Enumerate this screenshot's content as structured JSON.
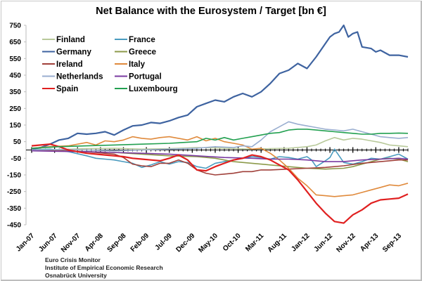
{
  "chart_data": {
    "type": "line",
    "title": "Net Balance with the Eurosystem / Target [bn €]",
    "xlabel": "",
    "ylabel": "",
    "ylim": [
      -450,
      750
    ],
    "yticks": [
      750,
      650,
      550,
      450,
      350,
      250,
      150,
      50,
      -50,
      -150,
      -250,
      -350,
      -450
    ],
    "x_range": [
      "Jan-07",
      "Nov-13"
    ],
    "xtick_labels": [
      "Jan-07",
      "Jun-07",
      "Nov-07",
      "Apr-08",
      "Sep-08",
      "Feb-09",
      "Jul-09",
      "Dec-09",
      "May-10",
      "Oct-10",
      "Mar-11",
      "Aug-11",
      "Jan-12",
      "Jun-12",
      "Nov-12",
      "Apr-13",
      "Sep-13"
    ],
    "x_note": "x values are month indices from Jan-07 (0) to Nov-13 (82)",
    "grid": false,
    "legend_position": "top-left",
    "series": [
      {
        "name": "Finland",
        "color": "#b8c99a",
        "x": [
          0,
          6,
          12,
          18,
          24,
          30,
          36,
          42,
          48,
          52,
          56,
          60,
          62,
          64,
          66,
          68,
          70,
          72,
          74,
          76,
          78,
          80,
          82
        ],
        "values": [
          5,
          3,
          8,
          10,
          5,
          8,
          15,
          10,
          5,
          8,
          10,
          20,
          30,
          55,
          75,
          60,
          70,
          65,
          55,
          45,
          30,
          25,
          20
        ]
      },
      {
        "name": "France",
        "color": "#4a9bbf",
        "x": [
          0,
          4,
          8,
          12,
          14,
          16,
          18,
          20,
          22,
          24,
          26,
          28,
          30,
          32,
          34,
          36,
          38,
          40,
          42,
          44,
          46,
          48,
          50,
          52,
          54,
          56,
          58,
          60,
          61,
          62,
          64,
          65,
          66,
          68,
          70,
          72,
          74,
          76,
          78,
          80,
          82
        ],
        "values": [
          0,
          5,
          -10,
          -35,
          -50,
          -55,
          -60,
          -70,
          -80,
          -105,
          -90,
          -70,
          -85,
          -70,
          -75,
          -100,
          -110,
          -80,
          -70,
          -60,
          -50,
          -40,
          -45,
          -55,
          -40,
          -45,
          -55,
          -40,
          -60,
          -100,
          -65,
          -45,
          5,
          -75,
          -85,
          -70,
          -50,
          -55,
          -40,
          -25,
          -55
        ]
      },
      {
        "name": "Germany",
        "color": "#3e63a0",
        "x": [
          0,
          2,
          4,
          6,
          8,
          10,
          12,
          14,
          16,
          18,
          20,
          22,
          24,
          26,
          28,
          30,
          32,
          34,
          36,
          38,
          40,
          42,
          44,
          46,
          48,
          50,
          52,
          54,
          56,
          58,
          60,
          62,
          64,
          65,
          66,
          67,
          68,
          69,
          70,
          71,
          72,
          74,
          75,
          76,
          78,
          80,
          82
        ],
        "values": [
          5,
          15,
          35,
          60,
          70,
          100,
          95,
          100,
          110,
          90,
          120,
          145,
          150,
          165,
          160,
          175,
          195,
          210,
          260,
          280,
          300,
          290,
          320,
          340,
          320,
          350,
          400,
          460,
          480,
          520,
          490,
          560,
          640,
          680,
          700,
          710,
          750,
          680,
          700,
          710,
          620,
          610,
          590,
          600,
          570,
          570,
          560
        ]
      },
      {
        "name": "Greece",
        "color": "#8c9a4a",
        "x": [
          0,
          6,
          12,
          18,
          24,
          30,
          36,
          40,
          44,
          48,
          52,
          56,
          60,
          64,
          68,
          70,
          72,
          74,
          76,
          78,
          80,
          82
        ],
        "values": [
          0,
          -5,
          -10,
          -15,
          -25,
          -35,
          -40,
          -50,
          -70,
          -80,
          -90,
          -100,
          -110,
          -115,
          -110,
          -100,
          -85,
          -70,
          -55,
          -50,
          -55,
          -70
        ]
      },
      {
        "name": "Ireland",
        "color": "#a0403a",
        "x": [
          0,
          6,
          12,
          18,
          20,
          22,
          24,
          26,
          28,
          30,
          32,
          34,
          36,
          38,
          40,
          42,
          44,
          46,
          48,
          50,
          52,
          56,
          60,
          64,
          68,
          72,
          76,
          80,
          82
        ],
        "values": [
          0,
          -5,
          -10,
          -25,
          -45,
          -85,
          -95,
          -100,
          -80,
          -80,
          -60,
          -80,
          -120,
          -140,
          -150,
          -145,
          -140,
          -130,
          -130,
          -120,
          -120,
          -115,
          -110,
          -105,
          -95,
          -80,
          -70,
          -60,
          -60
        ]
      },
      {
        "name": "Italy",
        "color": "#e08a3c",
        "x": [
          0,
          4,
          8,
          12,
          14,
          16,
          18,
          20,
          22,
          24,
          26,
          28,
          30,
          32,
          34,
          36,
          38,
          40,
          42,
          44,
          46,
          48,
          50,
          52,
          54,
          56,
          58,
          60,
          62,
          64,
          66,
          68,
          70,
          72,
          74,
          76,
          78,
          80,
          82
        ],
        "values": [
          10,
          20,
          25,
          45,
          30,
          55,
          50,
          60,
          80,
          70,
          65,
          75,
          80,
          70,
          60,
          80,
          55,
          70,
          50,
          40,
          30,
          5,
          10,
          -20,
          -60,
          -110,
          -170,
          -215,
          -270,
          -275,
          -280,
          -275,
          -270,
          -255,
          -240,
          -225,
          -210,
          -215,
          -200
        ]
      },
      {
        "name": "Netherlands",
        "color": "#9aaed0",
        "x": [
          0,
          6,
          12,
          18,
          24,
          30,
          36,
          40,
          44,
          46,
          48,
          50,
          52,
          54,
          56,
          58,
          60,
          62,
          64,
          66,
          68,
          70,
          72,
          74,
          76,
          78,
          80,
          82
        ],
        "values": [
          0,
          2,
          0,
          -5,
          0,
          5,
          10,
          20,
          15,
          25,
          20,
          60,
          110,
          140,
          170,
          155,
          145,
          135,
          125,
          120,
          115,
          125,
          110,
          95,
          80,
          75,
          70,
          75
        ]
      },
      {
        "name": "Portugal",
        "color": "#7a3aa0",
        "x": [
          0,
          6,
          12,
          18,
          24,
          30,
          36,
          42,
          48,
          52,
          56,
          60,
          64,
          68,
          72,
          76,
          80,
          82
        ],
        "values": [
          -5,
          -8,
          -10,
          -15,
          -20,
          -25,
          -35,
          -45,
          -50,
          -55,
          -55,
          -60,
          -70,
          -70,
          -60,
          -55,
          -50,
          -55
        ]
      },
      {
        "name": "Spain",
        "color": "#e02020",
        "x": [
          0,
          2,
          4,
          6,
          8,
          10,
          12,
          14,
          16,
          18,
          20,
          22,
          24,
          26,
          28,
          30,
          32,
          34,
          36,
          38,
          40,
          42,
          44,
          46,
          48,
          50,
          52,
          54,
          56,
          58,
          60,
          62,
          64,
          66,
          68,
          70,
          72,
          74,
          76,
          78,
          80,
          82
        ],
        "values": [
          25,
          30,
          35,
          20,
          0,
          -10,
          -20,
          -25,
          -30,
          -35,
          -40,
          -50,
          -55,
          -60,
          -65,
          -50,
          -30,
          -60,
          -120,
          -125,
          -100,
          -80,
          -60,
          -50,
          -30,
          -40,
          -60,
          -90,
          -120,
          -180,
          -250,
          -320,
          -380,
          -430,
          -440,
          -390,
          -360,
          -320,
          -300,
          -295,
          -290,
          -265
        ]
      },
      {
        "name": "Luxembourg",
        "color": "#22a050",
        "x": [
          0,
          6,
          12,
          18,
          24,
          30,
          36,
          38,
          40,
          42,
          44,
          46,
          48,
          50,
          52,
          54,
          56,
          58,
          60,
          62,
          64,
          66,
          68,
          70,
          72,
          74,
          76,
          78,
          80,
          82
        ],
        "values": [
          10,
          20,
          25,
          30,
          35,
          40,
          50,
          70,
          60,
          75,
          60,
          70,
          80,
          90,
          100,
          105,
          120,
          125,
          125,
          120,
          115,
          110,
          105,
          100,
          95,
          95,
          100,
          100,
          102,
          100
        ]
      }
    ]
  },
  "source_note": [
    "Euro Crisis Monitor",
    "Institute of Empirical Economic Research",
    "Osnabrück University"
  ]
}
